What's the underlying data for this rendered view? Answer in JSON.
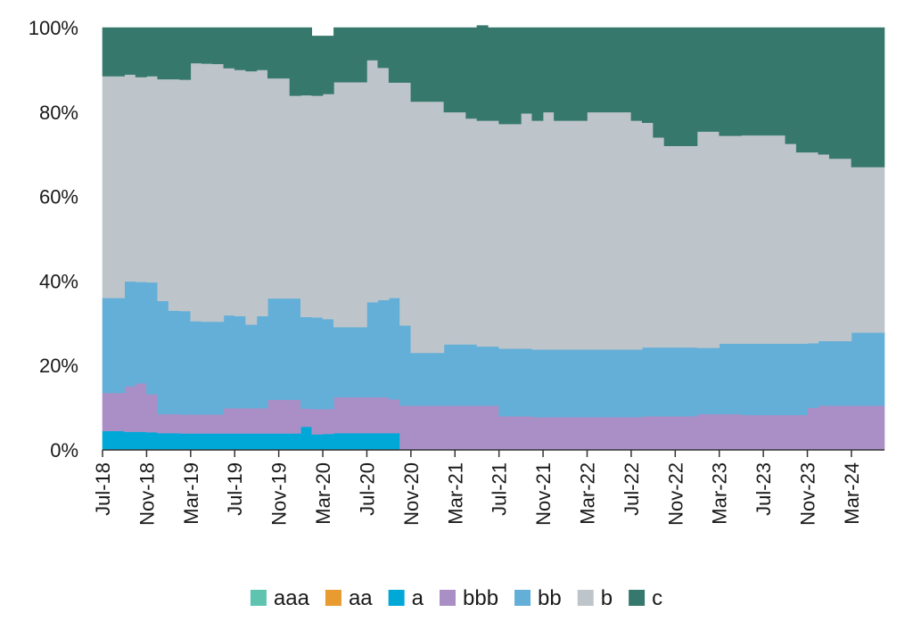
{
  "chart_data": {
    "type": "area",
    "stacked": true,
    "normalized": true,
    "ylim": [
      0,
      100
    ],
    "yticks": [
      "0%",
      "20%",
      "40%",
      "60%",
      "80%",
      "100%"
    ],
    "xticks": [
      "Jul-18",
      "Nov-18",
      "Mar-19",
      "Jul-19",
      "Nov-19",
      "Mar-20",
      "Jul-20",
      "Nov-20",
      "Mar-21",
      "Jul-21",
      "Nov-21",
      "Mar-22",
      "Jul-22",
      "Nov-22",
      "Mar-23",
      "Jul-23",
      "Nov-23",
      "Mar-24"
    ],
    "x": [
      "Jul-18",
      "Aug-18",
      "Sep-18",
      "Oct-18",
      "Nov-18",
      "Dec-18",
      "Jan-19",
      "Feb-19",
      "Mar-19",
      "Apr-19",
      "May-19",
      "Jun-19",
      "Jul-19",
      "Aug-19",
      "Sep-19",
      "Oct-19",
      "Nov-19",
      "Dec-19",
      "Jan-20",
      "Feb-20",
      "Mar-20",
      "Apr-20",
      "May-20",
      "Jun-20",
      "Jul-20",
      "Aug-20",
      "Sep-20",
      "Oct-20",
      "Nov-20",
      "Dec-20",
      "Jan-21",
      "Feb-21",
      "Mar-21",
      "Apr-21",
      "May-21",
      "Jun-21",
      "Jul-21",
      "Aug-21",
      "Sep-21",
      "Oct-21",
      "Nov-21",
      "Dec-21",
      "Jan-22",
      "Feb-22",
      "Mar-22",
      "Apr-22",
      "May-22",
      "Jun-22",
      "Jul-22",
      "Aug-22",
      "Sep-22",
      "Oct-22",
      "Nov-22",
      "Dec-22",
      "Jan-23",
      "Feb-23",
      "Mar-23",
      "Apr-23",
      "May-23",
      "Jun-23",
      "Jul-23",
      "Aug-23",
      "Sep-23",
      "Oct-23",
      "Nov-23",
      "Dec-23",
      "Jan-24",
      "Feb-24",
      "Mar-24",
      "Apr-24",
      "May-24"
    ],
    "series": [
      {
        "name": "aaa",
        "color": "#5ec4b0",
        "values": [
          0,
          0,
          0,
          0,
          0,
          0,
          0,
          0,
          0,
          0,
          0,
          0,
          0,
          0,
          0,
          0,
          0,
          0,
          0,
          0,
          0,
          0,
          0,
          0,
          0,
          0,
          0,
          0,
          0,
          0,
          0,
          0,
          0,
          0,
          0,
          0,
          0,
          0,
          0,
          0,
          0,
          0,
          0,
          0,
          0,
          0,
          0,
          0,
          0,
          0,
          0,
          0,
          0,
          0,
          0,
          0,
          0,
          0,
          0,
          0,
          0,
          0,
          0,
          0,
          0,
          0,
          0,
          0,
          0,
          0,
          0
        ]
      },
      {
        "name": "aa",
        "color": "#e89b2f",
        "values": [
          0,
          0,
          0,
          0,
          0,
          0,
          0,
          0,
          0,
          0,
          0,
          0,
          0,
          0,
          0,
          0,
          0,
          0,
          0,
          0,
          0,
          0,
          0,
          0,
          0,
          0,
          0,
          0,
          0,
          0,
          0,
          0,
          0,
          0,
          0,
          0,
          0,
          0,
          0,
          0,
          0,
          0,
          0,
          0,
          0,
          0,
          0,
          0,
          0,
          0,
          0,
          0,
          0,
          0,
          0,
          0,
          0,
          0,
          0,
          0,
          0,
          0,
          0,
          0,
          0,
          0,
          0,
          0,
          0,
          0,
          0
        ]
      },
      {
        "name": "a",
        "color": "#00a8d8",
        "values": [
          4.5,
          4.5,
          4.3,
          4.3,
          4.2,
          4.0,
          4.0,
          3.9,
          3.9,
          3.9,
          3.9,
          3.9,
          3.9,
          3.9,
          3.9,
          3.9,
          3.9,
          3.9,
          5.5,
          3.7,
          3.8,
          4.0,
          4.0,
          4.0,
          4.0,
          4.0,
          4.0,
          0,
          0,
          0,
          0,
          0,
          0,
          0,
          0,
          0,
          0,
          0,
          0,
          0,
          0,
          0,
          0,
          0,
          0,
          0,
          0,
          0,
          0,
          0,
          0,
          0,
          0,
          0,
          0,
          0,
          0,
          0,
          0,
          0,
          0,
          0,
          0,
          0,
          0,
          0,
          0,
          0,
          0,
          0,
          0
        ]
      },
      {
        "name": "bbb",
        "color": "#a98fc6",
        "values": [
          9.0,
          9.0,
          10.8,
          11.5,
          9.0,
          4.5,
          4.5,
          4.5,
          4.5,
          4.5,
          4.5,
          6.0,
          6.0,
          6.0,
          6.0,
          8.0,
          8.0,
          8.0,
          4.3,
          6.0,
          5.9,
          8.5,
          8.5,
          8.5,
          8.5,
          8.5,
          8.0,
          10.5,
          10.5,
          10.5,
          10.5,
          10.5,
          10.5,
          10.5,
          10.5,
          10.5,
          8.0,
          8.0,
          8.0,
          7.8,
          7.8,
          7.8,
          7.8,
          7.8,
          7.8,
          7.8,
          7.8,
          7.8,
          7.8,
          8.0,
          8.0,
          8.0,
          8.0,
          8.0,
          8.5,
          8.5,
          8.5,
          8.5,
          8.3,
          8.3,
          8.3,
          8.3,
          8.3,
          8.3,
          10.0,
          10.5,
          10.5,
          10.5,
          10.5,
          10.5,
          10.5
        ]
      },
      {
        "name": "bb",
        "color": "#64afd8",
        "values": [
          22.5,
          22.5,
          24.8,
          24.0,
          26.5,
          26.8,
          24.5,
          24.5,
          22.1,
          22.0,
          22.0,
          22.0,
          21.8,
          19.8,
          21.8,
          24.0,
          24.0,
          24.0,
          21.7,
          21.7,
          21.3,
          16.6,
          16.6,
          16.6,
          22.5,
          23.0,
          24.0,
          19.0,
          12.5,
          12.5,
          12.5,
          14.5,
          14.5,
          14.5,
          14.0,
          14.0,
          16.0,
          16.0,
          16.0,
          16.0,
          16.0,
          16.0,
          16.0,
          16.0,
          16.0,
          16.0,
          16.0,
          16.0,
          16.0,
          16.3,
          16.3,
          16.3,
          16.3,
          16.3,
          15.7,
          15.7,
          16.7,
          16.7,
          16.9,
          16.9,
          16.9,
          16.9,
          16.9,
          16.9,
          15.3,
          15.3,
          15.3,
          15.3,
          17.3,
          17.3,
          17.3
        ]
      },
      {
        "name": "b",
        "color": "#bec5ca",
        "values": [
          52.5,
          52.5,
          49.0,
          48.5,
          48.8,
          52.5,
          54.8,
          54.8,
          61.1,
          61.1,
          61.0,
          58.5,
          58.3,
          60.0,
          58.3,
          52.1,
          52.1,
          48.0,
          52.5,
          52.5,
          53.3,
          58.0,
          58.0,
          58.0,
          57.3,
          55.0,
          51.0,
          57.5,
          59.5,
          59.5,
          59.5,
          55.0,
          55.0,
          53.5,
          53.5,
          53.5,
          53.2,
          53.2,
          55.7,
          54.2,
          56.2,
          54.2,
          54.2,
          54.2,
          56.2,
          56.2,
          56.2,
          56.2,
          54.2,
          53.2,
          49.7,
          47.7,
          47.7,
          47.7,
          51.2,
          51.2,
          49.2,
          49.2,
          49.3,
          49.3,
          49.3,
          49.3,
          47.3,
          45.3,
          45.2,
          44.2,
          43.2,
          43.2,
          39.2,
          39.2,
          39.2
        ]
      },
      {
        "name": "c",
        "color": "#37786d",
        "values": [
          11.5,
          11.5,
          11.1,
          11.7,
          11.5,
          12.2,
          12.2,
          12.3,
          8.4,
          8.5,
          8.6,
          9.6,
          10.0,
          10.3,
          10.0,
          12.0,
          12.0,
          16.1,
          16.0,
          14.1,
          13.7,
          12.9,
          12.9,
          12.9,
          7.7,
          9.5,
          13.0,
          13.0,
          17.5,
          17.5,
          17.5,
          20.0,
          20.0,
          21.5,
          22.5,
          22.0,
          22.8,
          22.8,
          20.3,
          22.0,
          20.0,
          22.0,
          22.0,
          22.0,
          20.0,
          20.0,
          20.0,
          20.0,
          22.0,
          22.5,
          26.0,
          28.0,
          28.0,
          28.0,
          24.6,
          24.6,
          25.6,
          25.6,
          25.5,
          25.5,
          25.5,
          25.5,
          27.5,
          29.5,
          29.5,
          30.0,
          31.0,
          31.0,
          33.0,
          33.0,
          33.0
        ]
      }
    ],
    "title": "",
    "xlabel": "",
    "ylabel": "",
    "legend_position": "bottom-center",
    "grid": false
  }
}
